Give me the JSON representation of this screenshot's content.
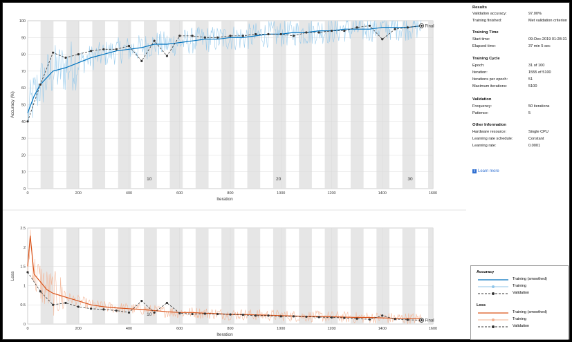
{
  "info": {
    "results_title": "Results",
    "results": [
      {
        "k": "Validation accuracy:",
        "v": "97.00%"
      },
      {
        "k": "Training finished:",
        "v": "Met validation criterion"
      }
    ],
    "time_title": "Training Time",
    "time": [
      {
        "k": "Start time:",
        "v": "09-Dec-2019 01:28:31"
      },
      {
        "k": "Elapsed time:",
        "v": "37 min 5 sec"
      }
    ],
    "cycle_title": "Training Cycle",
    "cycle": [
      {
        "k": "Epoch:",
        "v": "31 of 100"
      },
      {
        "k": "Iteration:",
        "v": "1555 of 5100"
      },
      {
        "k": "Iterations per epoch:",
        "v": "51"
      },
      {
        "k": "Maximum iterations:",
        "v": "5100"
      }
    ],
    "validation_title": "Validation",
    "validation": [
      {
        "k": "Frequency:",
        "v": "50 iterations"
      },
      {
        "k": "Patience:",
        "v": "5"
      }
    ],
    "other_title": "Other Information",
    "other": [
      {
        "k": "Hardware resource:",
        "v": "Single CPU"
      },
      {
        "k": "Learning rate schedule:",
        "v": "Constant"
      },
      {
        "k": "Learning rate:",
        "v": "0.0001"
      }
    ],
    "learn_more": "Learn more",
    "learn_more_icon": "info-icon"
  },
  "legend": {
    "accuracy_title": "Accuracy",
    "accuracy_items": [
      "Training (smoothed)",
      "Training",
      "Validation"
    ],
    "loss_title": "Loss",
    "loss_items": [
      "Training (smoothed)",
      "Training",
      "Validation"
    ]
  },
  "colors": {
    "acc_smooth": "#0072bd",
    "acc_raw": "#8fc6ea",
    "loss_smooth": "#d95319",
    "loss_raw": "#f3b08f",
    "validation": "#333333",
    "epoch_band": "#e6e6e6"
  },
  "chart_data": [
    {
      "type": "line",
      "ylabel": "Accuracy (%)",
      "xlabel": "Iteration",
      "xlim": [
        0,
        1600
      ],
      "ylim": [
        0,
        100
      ],
      "xticks": [
        0,
        200,
        400,
        600,
        800,
        1000,
        1200,
        1400,
        1600
      ],
      "yticks": [
        0,
        10,
        20,
        30,
        40,
        50,
        60,
        70,
        80,
        90,
        100
      ],
      "grid": true,
      "epoch_labels": [
        {
          "x": 480,
          "label": "10"
        },
        {
          "x": 990,
          "label": "20"
        },
        {
          "x": 1510,
          "label": "30"
        }
      ],
      "final_label": "Final",
      "series": [
        {
          "name": "Training (smoothed)",
          "x": [
            0,
            25,
            50,
            75,
            100,
            150,
            200,
            250,
            300,
            350,
            400,
            450,
            500,
            550,
            600,
            650,
            700,
            750,
            800,
            850,
            900,
            950,
            1000,
            1050,
            1100,
            1150,
            1200,
            1250,
            1300,
            1350,
            1400,
            1450,
            1500,
            1555
          ],
          "y": [
            45,
            55,
            62,
            66,
            70,
            72,
            75,
            78,
            80,
            82,
            83,
            84,
            86,
            86,
            87,
            88,
            89,
            89,
            90,
            90,
            91,
            92,
            92,
            93,
            93,
            94,
            94,
            95,
            95,
            95,
            96,
            96,
            96,
            97
          ]
        },
        {
          "name": "Validation",
          "x": [
            0,
            50,
            100,
            150,
            200,
            250,
            300,
            350,
            400,
            450,
            500,
            550,
            600,
            650,
            700,
            750,
            800,
            850,
            900,
            950,
            1000,
            1050,
            1100,
            1150,
            1200,
            1250,
            1300,
            1350,
            1400,
            1450,
            1500,
            1555
          ],
          "y": [
            40,
            62,
            81,
            78,
            80,
            82,
            83,
            83,
            85,
            76,
            88,
            79,
            91,
            91,
            90,
            90,
            91,
            91,
            92,
            92,
            92,
            91,
            93,
            93,
            94,
            94,
            96,
            97,
            89,
            95,
            96,
            97
          ]
        }
      ]
    },
    {
      "type": "line",
      "ylabel": "Loss",
      "xlabel": "Iteration",
      "xlim": [
        0,
        1600
      ],
      "ylim": [
        0,
        2.5
      ],
      "xticks": [
        0,
        200,
        400,
        600,
        800,
        1000,
        1200,
        1400,
        1600
      ],
      "yticks": [
        0,
        0.5,
        1,
        1.5,
        2,
        2.5
      ],
      "grid": true,
      "epoch_labels": [
        {
          "x": 480,
          "label": "10"
        }
      ],
      "final_label": "Final",
      "series": [
        {
          "name": "Training (smoothed)",
          "x": [
            0,
            10,
            25,
            50,
            75,
            100,
            150,
            200,
            250,
            300,
            350,
            400,
            450,
            500,
            550,
            600,
            650,
            700,
            750,
            800,
            850,
            900,
            950,
            1000,
            1050,
            1100,
            1150,
            1200,
            1250,
            1300,
            1350,
            1400,
            1450,
            1500,
            1555
          ],
          "y": [
            1.5,
            2.3,
            1.3,
            1.1,
            0.9,
            0.8,
            0.7,
            0.6,
            0.5,
            0.45,
            0.42,
            0.4,
            0.38,
            0.35,
            0.32,
            0.3,
            0.3,
            0.28,
            0.27,
            0.25,
            0.25,
            0.24,
            0.23,
            0.22,
            0.21,
            0.2,
            0.2,
            0.19,
            0.18,
            0.17,
            0.17,
            0.16,
            0.15,
            0.15,
            0.14
          ]
        },
        {
          "name": "Validation",
          "x": [
            0,
            50,
            100,
            150,
            200,
            250,
            300,
            350,
            400,
            450,
            500,
            550,
            600,
            650,
            700,
            750,
            800,
            850,
            900,
            950,
            1000,
            1050,
            1100,
            1150,
            1200,
            1250,
            1300,
            1350,
            1400,
            1450,
            1500,
            1555
          ],
          "y": [
            1.35,
            0.85,
            0.5,
            0.55,
            0.45,
            0.4,
            0.38,
            0.35,
            0.3,
            0.6,
            0.3,
            0.55,
            0.28,
            0.26,
            0.27,
            0.26,
            0.25,
            0.24,
            0.22,
            0.22,
            0.2,
            0.2,
            0.19,
            0.18,
            0.17,
            0.16,
            0.14,
            0.12,
            0.22,
            0.13,
            0.11,
            0.1
          ]
        }
      ]
    }
  ]
}
